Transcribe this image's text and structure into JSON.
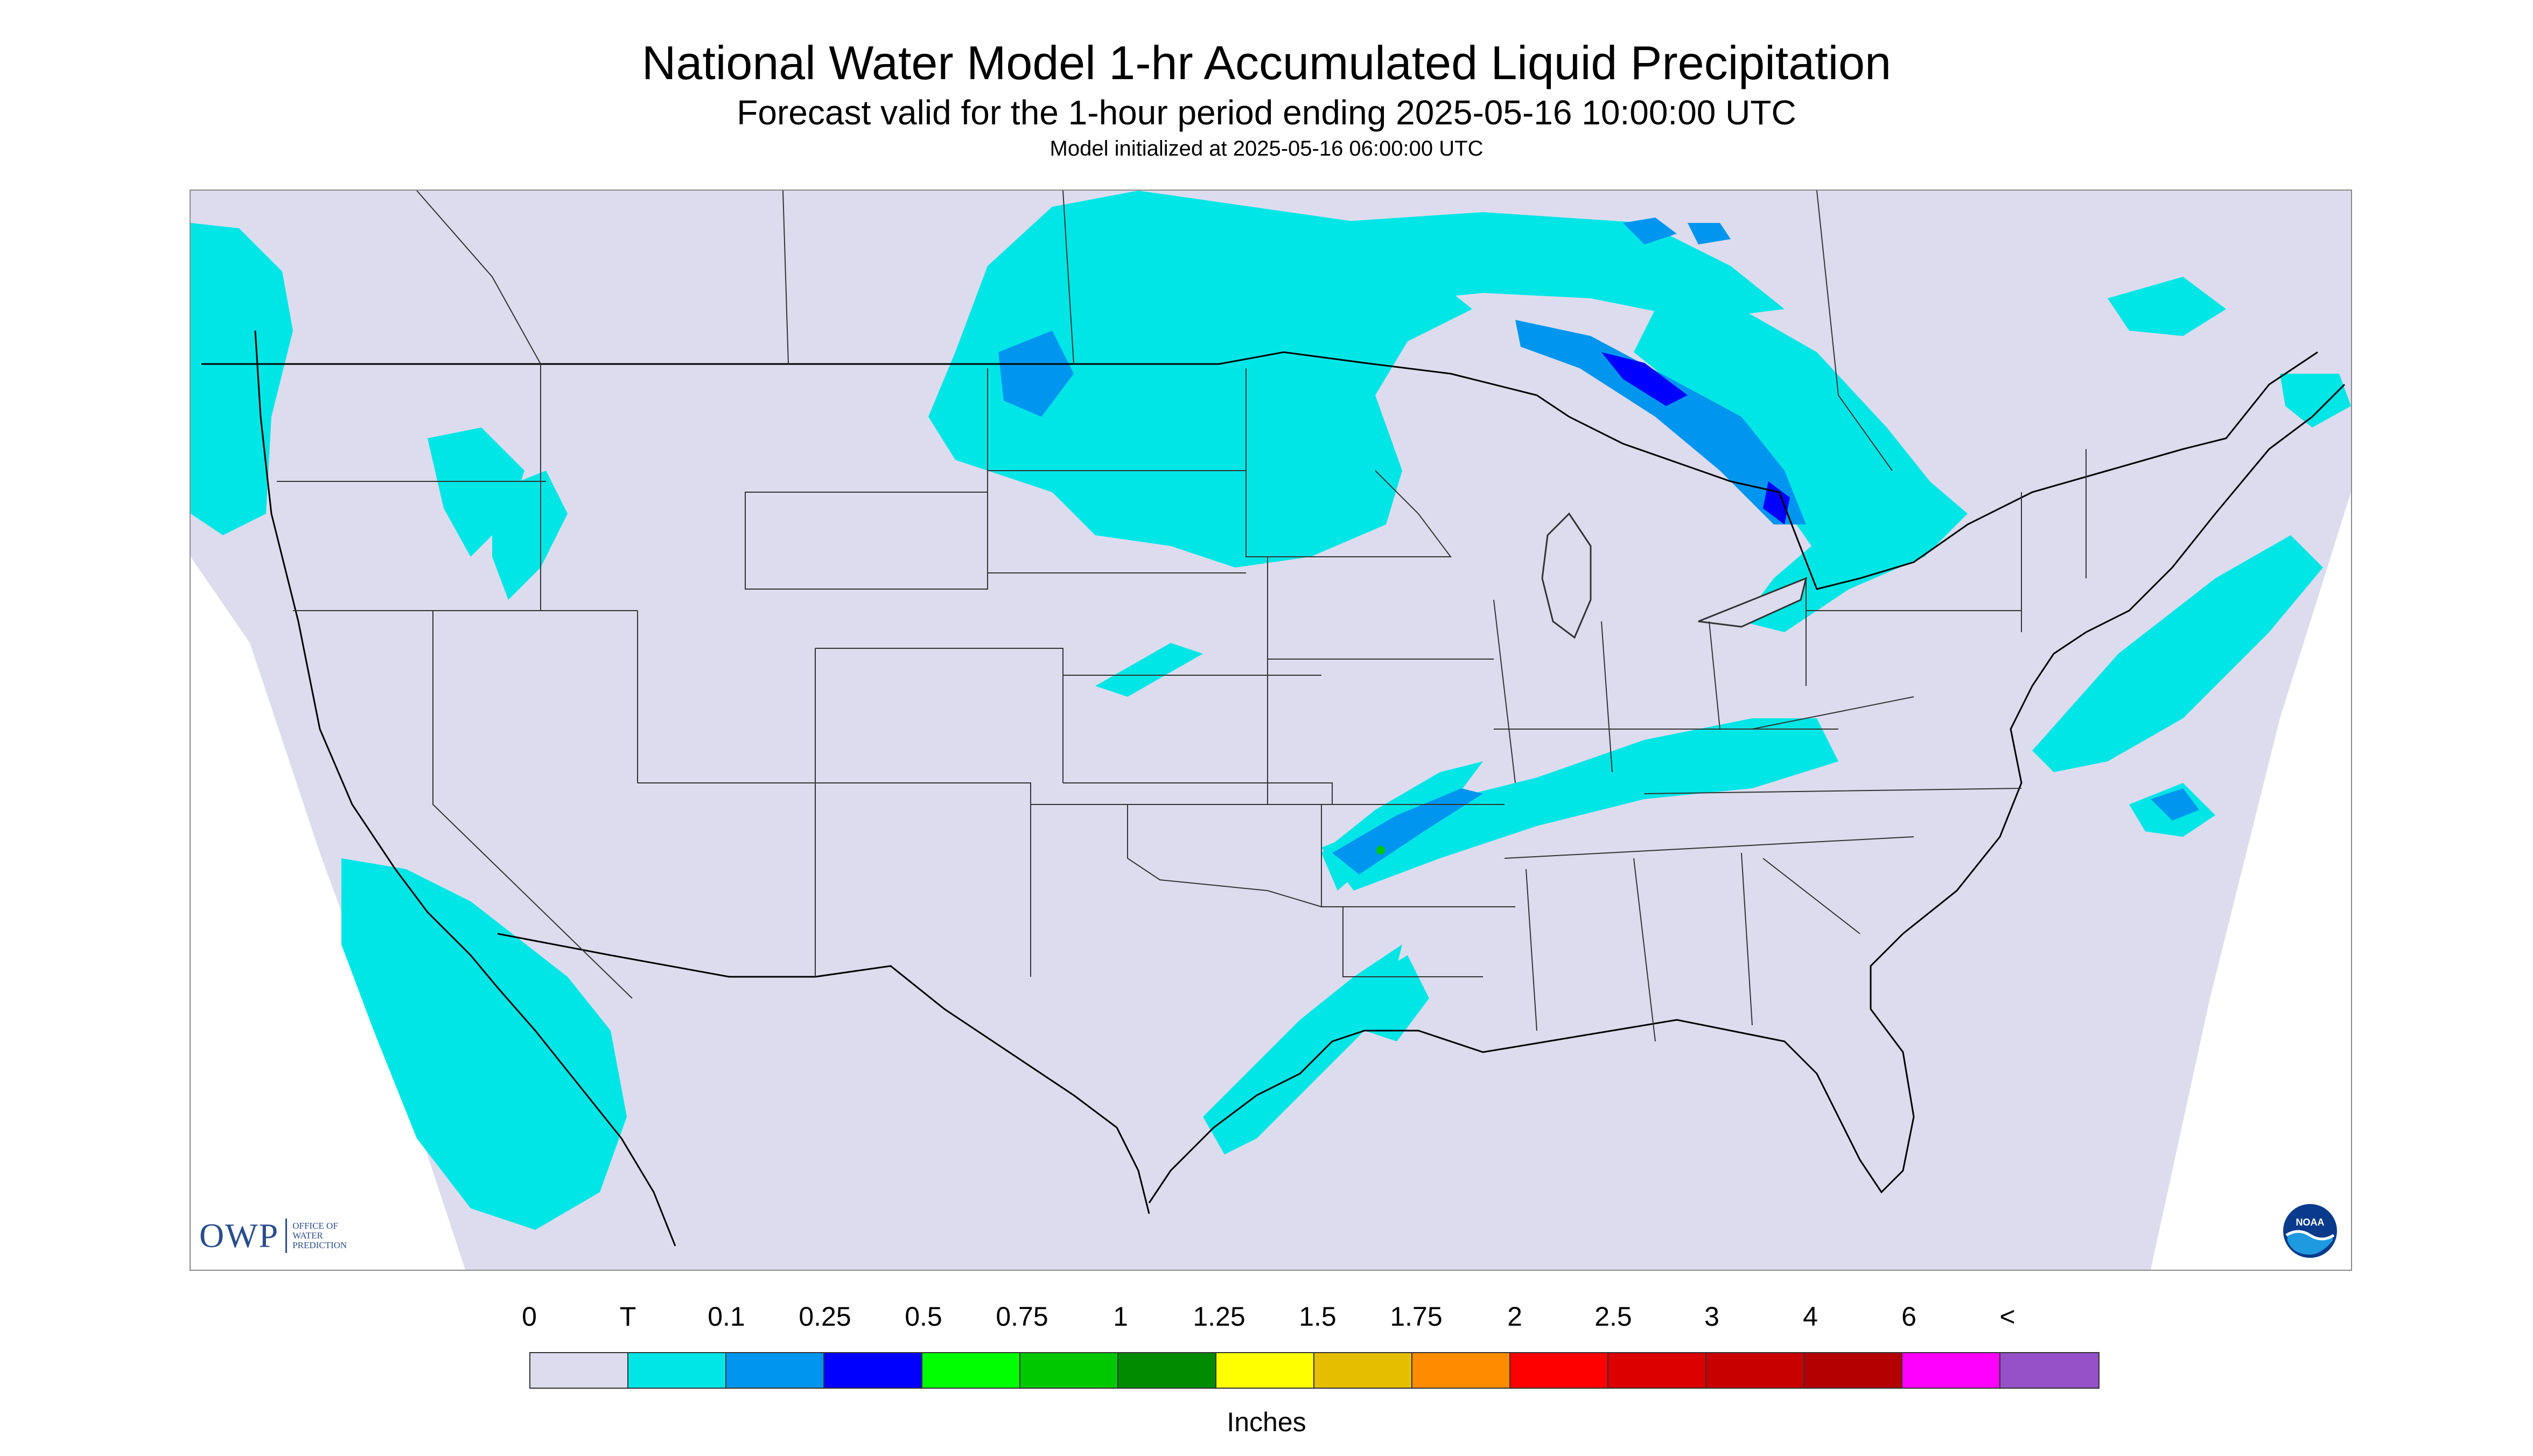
{
  "header": {
    "title": "National Water Model 1-hr Accumulated Liquid Precipitation",
    "subtitle": "Forecast valid for the 1-hour period ending 2025-05-16 10:00:00 UTC",
    "init_line": "Model initialized at 2025-05-16 06:00:00 UTC"
  },
  "logos": {
    "owp_mark": "OWP",
    "owp_text": [
      "OFFICE OF",
      "WATER",
      "PREDICTION"
    ],
    "noaa_text": "NOAA"
  },
  "legend": {
    "tick_labels": [
      "0",
      "T",
      "0.1",
      "0.25",
      "0.5",
      "0.75",
      "1",
      "1.25",
      "1.5",
      "1.75",
      "2",
      "2.5",
      "3",
      "4",
      "6",
      "<"
    ],
    "colors": [
      "#dcdcee",
      "#00e6e6",
      "#0096f0",
      "#0000ff",
      "#00ff00",
      "#00c800",
      "#008c00",
      "#ffff00",
      "#e6be00",
      "#ff8c00",
      "#ff0000",
      "#dc0000",
      "#c80000",
      "#b40000",
      "#ff00ff",
      "#9650c8"
    ],
    "units": "Inches"
  },
  "map": {
    "background_color": "#dcdcee",
    "precip_colors": {
      "trace": "#00e6e6",
      "light": "#0096f0",
      "moderate": "#0000ff",
      "heavy": "#00c800"
    },
    "line_color": "#333333"
  }
}
